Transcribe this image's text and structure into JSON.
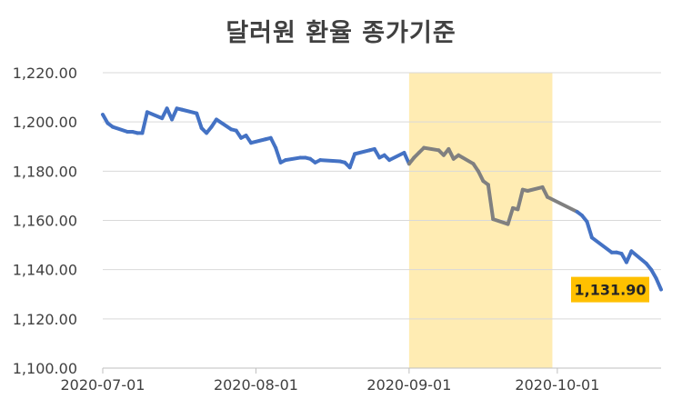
{
  "chart_data": {
    "type": "line",
    "title": "달러원 환율 종가기준",
    "xlabel": "",
    "ylabel": "",
    "ylim": [
      1100,
      1220
    ],
    "y_ticks": [
      "1,100.00",
      "1,120.00",
      "1,140.00",
      "1,160.00",
      "1,180.00",
      "1,200.00",
      "1,220.00"
    ],
    "x_ticks": [
      {
        "label": "2020-07-01",
        "date": "2020-07-01"
      },
      {
        "label": "2020-08-01",
        "date": "2020-08-01"
      },
      {
        "label": "2020-09-01",
        "date": "2020-09-01"
      },
      {
        "label": "2020-10-01",
        "date": "2020-10-01"
      }
    ],
    "grid": "horizontal",
    "highlight_range": {
      "start": "2020-09-01",
      "end": "2020-09-30",
      "color": "#FFECB3"
    },
    "colors": {
      "line": "#4472C4",
      "line_highlighted": "#808080",
      "callout_bg": "#FFC000",
      "grid": "#D9D9D9"
    },
    "callout": {
      "label": "1,131.90",
      "date": "2020-10-22",
      "value": 1131.9
    },
    "series": [
      {
        "points": [
          [
            "2020-07-01",
            1203.0
          ],
          [
            "2020-07-02",
            1199.5
          ],
          [
            "2020-07-03",
            1198.0
          ],
          [
            "2020-07-06",
            1196.0
          ],
          [
            "2020-07-07",
            1196.0
          ],
          [
            "2020-07-08",
            1195.5
          ],
          [
            "2020-07-09",
            1195.5
          ],
          [
            "2020-07-10",
            1204.0
          ],
          [
            "2020-07-13",
            1201.5
          ],
          [
            "2020-07-14",
            1205.5
          ],
          [
            "2020-07-15",
            1201.0
          ],
          [
            "2020-07-16",
            1205.5
          ],
          [
            "2020-07-17",
            1205.0
          ],
          [
            "2020-07-20",
            1203.5
          ],
          [
            "2020-07-21",
            1197.5
          ],
          [
            "2020-07-22",
            1195.5
          ],
          [
            "2020-07-23",
            1198.0
          ],
          [
            "2020-07-24",
            1201.0
          ],
          [
            "2020-07-27",
            1197.0
          ],
          [
            "2020-07-28",
            1196.5
          ],
          [
            "2020-07-29",
            1193.5
          ],
          [
            "2020-07-30",
            1194.5
          ],
          [
            "2020-07-31",
            1191.5
          ],
          [
            "2020-08-03",
            1193.0
          ],
          [
            "2020-08-04",
            1193.5
          ],
          [
            "2020-08-05",
            1189.5
          ],
          [
            "2020-08-06",
            1183.5
          ],
          [
            "2020-08-07",
            1184.5
          ],
          [
            "2020-08-10",
            1185.5
          ],
          [
            "2020-08-11",
            1185.5
          ],
          [
            "2020-08-12",
            1185.0
          ],
          [
            "2020-08-13",
            1183.5
          ],
          [
            "2020-08-14",
            1184.5
          ],
          [
            "2020-08-18",
            1184.0
          ],
          [
            "2020-08-19",
            1183.5
          ],
          [
            "2020-08-20",
            1181.5
          ],
          [
            "2020-08-21",
            1187.0
          ],
          [
            "2020-08-24",
            1188.5
          ],
          [
            "2020-08-25",
            1189.0
          ],
          [
            "2020-08-26",
            1185.5
          ],
          [
            "2020-08-27",
            1186.5
          ],
          [
            "2020-08-28",
            1184.5
          ],
          [
            "2020-08-31",
            1187.5
          ],
          [
            "2020-09-01",
            1183.0
          ],
          [
            "2020-09-02",
            1185.5
          ],
          [
            "2020-09-03",
            1187.5
          ],
          [
            "2020-09-04",
            1189.5
          ],
          [
            "2020-09-07",
            1188.5
          ],
          [
            "2020-09-08",
            1186.5
          ],
          [
            "2020-09-09",
            1189.0
          ],
          [
            "2020-09-10",
            1185.0
          ],
          [
            "2020-09-11",
            1186.5
          ],
          [
            "2020-09-14",
            1183.0
          ],
          [
            "2020-09-15",
            1180.0
          ],
          [
            "2020-09-16",
            1176.0
          ],
          [
            "2020-09-17",
            1174.5
          ],
          [
            "2020-09-18",
            1160.5
          ],
          [
            "2020-09-21",
            1158.5
          ],
          [
            "2020-09-22",
            1165.0
          ],
          [
            "2020-09-23",
            1164.5
          ],
          [
            "2020-09-24",
            1172.5
          ],
          [
            "2020-09-25",
            1172.0
          ],
          [
            "2020-09-28",
            1173.5
          ],
          [
            "2020-09-29",
            1169.5
          ],
          [
            "2020-10-05",
            1163.5
          ],
          [
            "2020-10-06",
            1162.0
          ],
          [
            "2020-10-07",
            1159.5
          ],
          [
            "2020-10-08",
            1153.0
          ],
          [
            "2020-10-12",
            1147.0
          ],
          [
            "2020-10-13",
            1147.0
          ],
          [
            "2020-10-14",
            1146.5
          ],
          [
            "2020-10-15",
            1143.0
          ],
          [
            "2020-10-16",
            1147.5
          ],
          [
            "2020-10-19",
            1142.5
          ],
          [
            "2020-10-20",
            1140.0
          ],
          [
            "2020-10-21",
            1136.5
          ],
          [
            "2020-10-22",
            1131.9
          ]
        ]
      }
    ]
  }
}
